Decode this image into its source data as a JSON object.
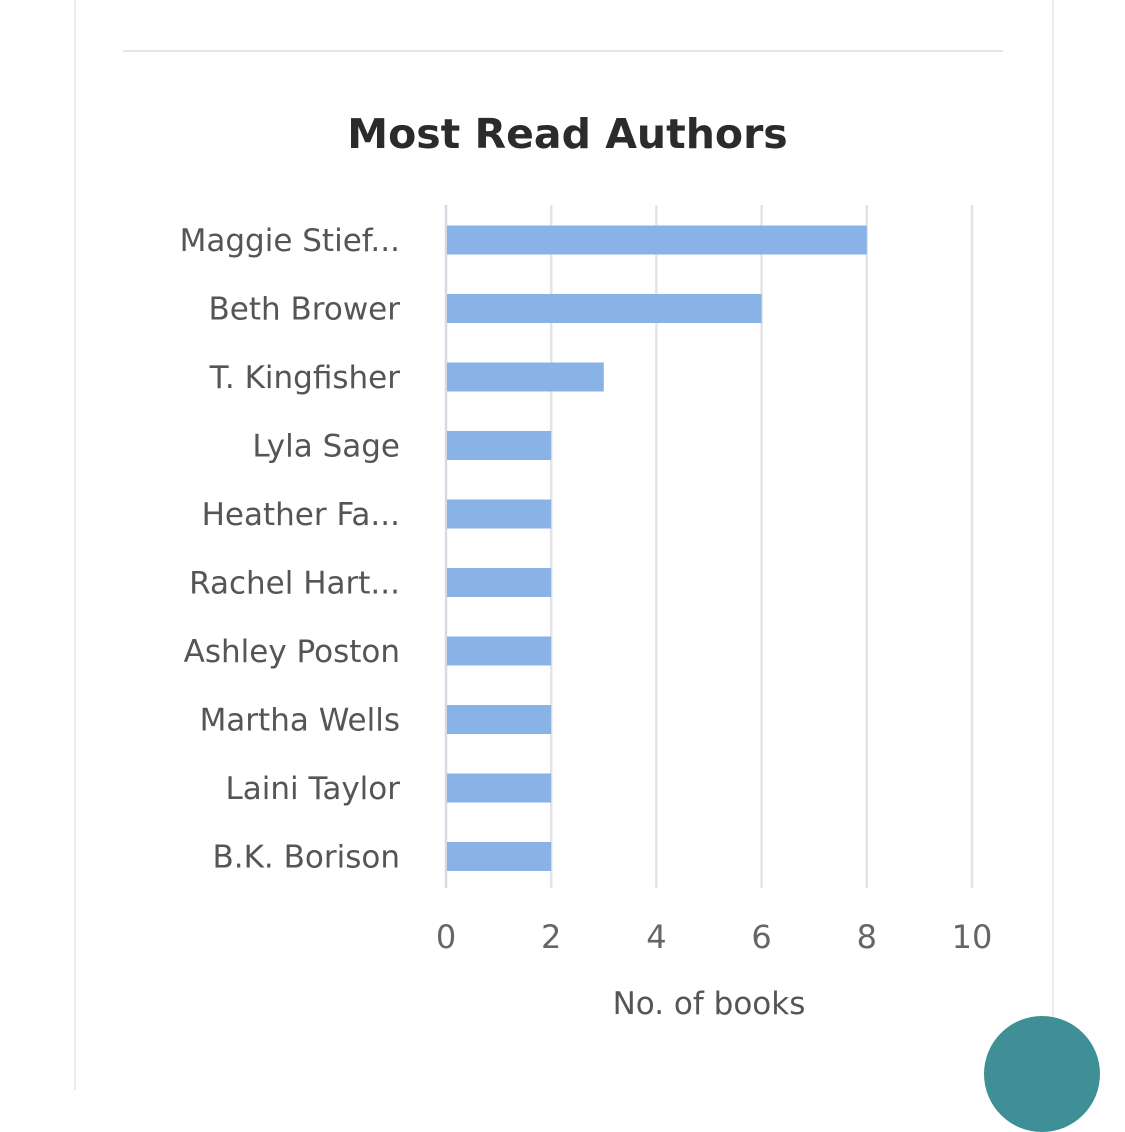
{
  "chart_data": {
    "type": "bar",
    "orientation": "horizontal",
    "title": "Most Read Authors",
    "xlabel": "No. of books",
    "ylabel": "",
    "categories": [
      "Maggie Stief...",
      "Beth Brower",
      "T. Kingfisher",
      "Lyla Sage",
      "Heather Fa...",
      "Rachel Hart...",
      "Ashley Poston",
      "Martha Wells",
      "Laini Taylor",
      "B.K. Borison"
    ],
    "values": [
      8,
      6,
      3,
      2,
      2,
      2,
      2,
      2,
      2,
      2
    ],
    "xlim": [
      0,
      10
    ],
    "xticks": [
      "0",
      "2",
      "4",
      "6",
      "8",
      "10"
    ],
    "grid": true,
    "bar_color": "#89b3e6",
    "accent_color": "#3f8f97"
  }
}
